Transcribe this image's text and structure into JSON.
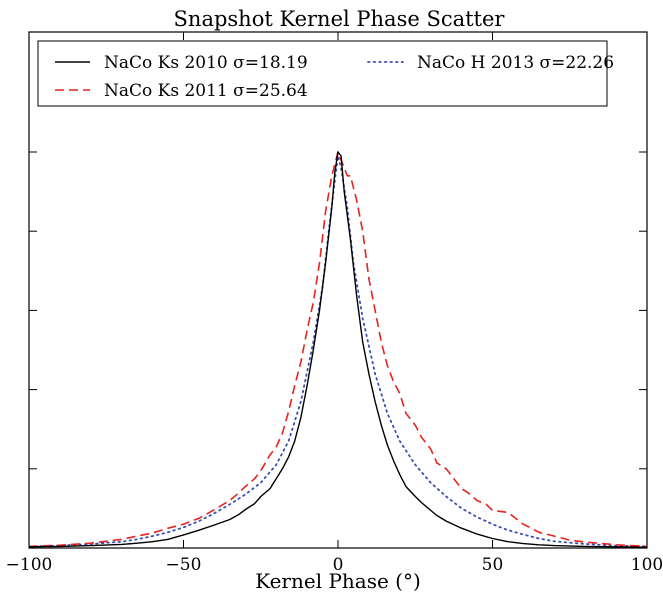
{
  "chart_data": {
    "type": "line",
    "title": "Snapshot Kernel Phase Scatter",
    "xlabel": "Kernel Phase (°)",
    "ylabel": "",
    "xlim": [
      -100,
      100
    ],
    "ylim": [
      0,
      1.0
    ],
    "grid": false,
    "legend_position": "top",
    "x_ticks": [
      -100,
      -50,
      0,
      50,
      100
    ],
    "x_tick_labels": [
      "−100",
      "−50",
      "0",
      "50",
      "100"
    ],
    "y_ticks": [
      0,
      0.2,
      0.4,
      0.6,
      0.8,
      1.0
    ],
    "series": [
      {
        "name": "NaCo Ks 2010 σ=18.19",
        "color": "#000000",
        "style": "solid",
        "x": [
          -100,
          -90,
          -80,
          -70,
          -65,
          -60,
          -55,
          -50,
          -45,
          -40,
          -35,
          -32,
          -30,
          -27,
          -25,
          -22,
          -20,
          -18,
          -16,
          -14,
          -12,
          -10,
          -8,
          -6,
          -4,
          -2,
          -1,
          0,
          1,
          2,
          4,
          6,
          8,
          10,
          12,
          14,
          16,
          18,
          20,
          22,
          25,
          27,
          30,
          32,
          35,
          40,
          45,
          50,
          55,
          60,
          65,
          70,
          80,
          90,
          100
        ],
        "y": [
          0.003,
          0.004,
          0.006,
          0.009,
          0.012,
          0.016,
          0.022,
          0.033,
          0.045,
          0.058,
          0.072,
          0.085,
          0.097,
          0.112,
          0.13,
          0.15,
          0.175,
          0.2,
          0.23,
          0.27,
          0.33,
          0.41,
          0.5,
          0.6,
          0.72,
          0.86,
          0.95,
          1.0,
          0.99,
          0.9,
          0.78,
          0.64,
          0.52,
          0.44,
          0.37,
          0.31,
          0.26,
          0.22,
          0.185,
          0.155,
          0.13,
          0.115,
          0.095,
          0.082,
          0.068,
          0.05,
          0.035,
          0.024,
          0.016,
          0.011,
          0.008,
          0.006,
          0.004,
          0.003,
          0.002
        ]
      },
      {
        "name": "NaCo Ks 2011 σ=25.64",
        "color": "#e8221f",
        "style": "dashed",
        "x": [
          -100,
          -90,
          -80,
          -70,
          -65,
          -60,
          -55,
          -50,
          -45,
          -40,
          -35,
          -32,
          -30,
          -27,
          -25,
          -22,
          -20,
          -18,
          -16,
          -14,
          -12,
          -10,
          -8,
          -6,
          -4,
          -2,
          0,
          2,
          3,
          4,
          6,
          8,
          10,
          12,
          14,
          16,
          18,
          20,
          22,
          25,
          27,
          30,
          32,
          35,
          38,
          40,
          42,
          45,
          48,
          50,
          55,
          60,
          65,
          70,
          75,
          80,
          90,
          100
        ],
        "y": [
          0.004,
          0.007,
          0.012,
          0.022,
          0.03,
          0.038,
          0.05,
          0.06,
          0.075,
          0.097,
          0.12,
          0.14,
          0.155,
          0.175,
          0.195,
          0.235,
          0.255,
          0.29,
          0.345,
          0.41,
          0.47,
          0.55,
          0.62,
          0.72,
          0.85,
          0.94,
          1.0,
          0.96,
          0.94,
          0.94,
          0.88,
          0.8,
          0.68,
          0.6,
          0.52,
          0.46,
          0.42,
          0.39,
          0.34,
          0.31,
          0.28,
          0.25,
          0.215,
          0.2,
          0.17,
          0.15,
          0.14,
          0.12,
          0.11,
          0.095,
          0.09,
          0.06,
          0.04,
          0.03,
          0.02,
          0.015,
          0.008,
          0.004
        ]
      },
      {
        "name": "NaCo H 2013 σ=22.26",
        "color": "#3a4fb5",
        "style": "dotted",
        "x": [
          -100,
          -90,
          -80,
          -70,
          -65,
          -60,
          -55,
          -50,
          -45,
          -40,
          -35,
          -30,
          -25,
          -20,
          -16,
          -12,
          -8,
          -5,
          -3,
          -1,
          0,
          1,
          3,
          5,
          8,
          12,
          16,
          20,
          25,
          30,
          35,
          40,
          45,
          50,
          55,
          60,
          65,
          70,
          80,
          90,
          100
        ],
        "y": [
          0.004,
          0.006,
          0.01,
          0.016,
          0.022,
          0.03,
          0.04,
          0.052,
          0.068,
          0.088,
          0.11,
          0.135,
          0.165,
          0.21,
          0.27,
          0.37,
          0.52,
          0.66,
          0.8,
          0.93,
          0.99,
          0.96,
          0.86,
          0.72,
          0.58,
          0.44,
          0.34,
          0.27,
          0.21,
          0.165,
          0.13,
          0.1,
          0.078,
          0.06,
          0.045,
          0.034,
          0.024,
          0.017,
          0.01,
          0.006,
          0.004
        ]
      }
    ]
  },
  "legend": {
    "entries": [
      {
        "label": "NaCo Ks 2010 σ=18.19"
      },
      {
        "label": "NaCo Ks 2011 σ=25.64"
      },
      {
        "label": "NaCo H 2013 σ=22.26"
      }
    ]
  }
}
